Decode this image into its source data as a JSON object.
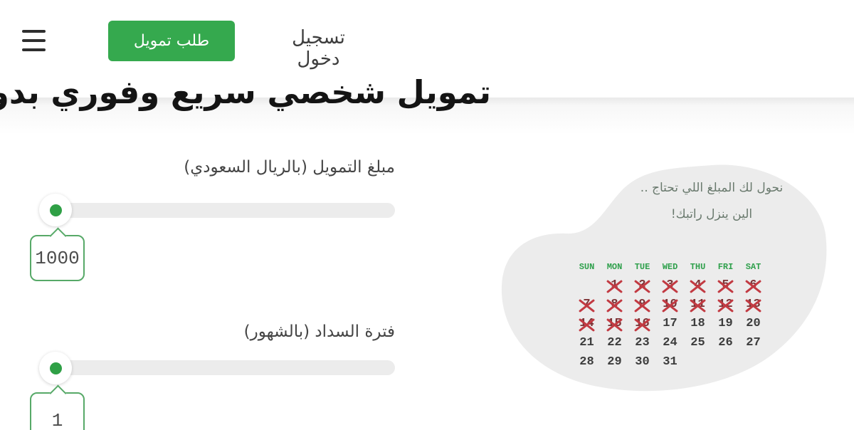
{
  "header": {
    "request_button_label": "طلب تمويل",
    "login_label": "تسجيل دخول"
  },
  "hero": {
    "title": "تمويل شخصي سريع وفوري بدون تحويل راتب"
  },
  "calculator": {
    "amount_label": "مبلغ التمويل (بالريال السعودي)",
    "amount_value": "1000",
    "period_label": "فترة السداد (بالشهور)",
    "period_value": "1"
  },
  "promo": {
    "message_line1": "نحول لك المبلغ اللي تحتاج ..",
    "message_line2": "الين ينزل راتبك!",
    "calendar": {
      "day_headers": [
        "SUN",
        "MON",
        "TUE",
        "WED",
        "THU",
        "FRI",
        "SAT"
      ],
      "weeks": [
        [
          "",
          1,
          2,
          3,
          4,
          5,
          6
        ],
        [
          7,
          8,
          9,
          10,
          11,
          12,
          13
        ],
        [
          14,
          15,
          16,
          17,
          18,
          19,
          20
        ],
        [
          21,
          22,
          23,
          24,
          25,
          26,
          27
        ],
        [
          28,
          29,
          30,
          31,
          "",
          "",
          ""
        ]
      ],
      "crossed_days_through": 16
    }
  },
  "colors": {
    "accent_green": "#35a94e",
    "thumb_dot_green": "#2fa046",
    "tooltip_border_green": "#57a968",
    "calendar_header_green": "#2fa04c",
    "cross_mark_red": "#c23a42",
    "crossed_number_red": "#7d3336",
    "slider_track_gray": "#ececec",
    "blob_gray": "#ececec",
    "title_black": "#141414"
  }
}
